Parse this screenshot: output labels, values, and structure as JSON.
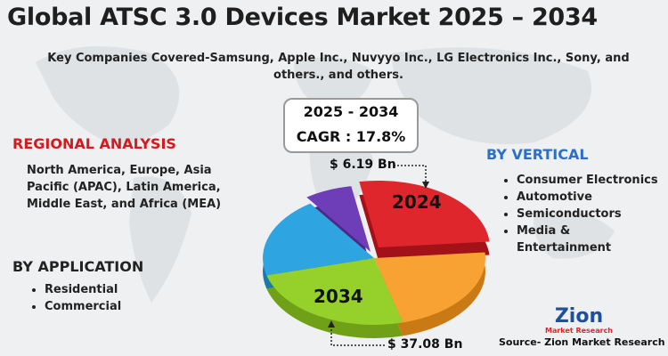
{
  "title": "Global ATSC 3.0 Devices Market 2025 – 2034",
  "subtitle": "Key Companies Covered-Samsung, Apple Inc., Nuvyyo Inc., LG Electronics Inc., Sony, and others., and others.",
  "forecast": {
    "period": "2025 - 2034",
    "cagr": "CAGR : 17.8%"
  },
  "regional": {
    "heading": "REGIONAL ANALYSIS",
    "text": "North America, Europe, Asia Pacific (APAC), Latin America, Middle East, and Africa (MEA)"
  },
  "application": {
    "heading": "BY APPLICATION",
    "items": [
      "Residential",
      "Commercial"
    ]
  },
  "vertical": {
    "heading": "BY VERTICAL",
    "items": [
      "Consumer Electronics",
      "Automotive",
      "Semiconductors",
      "Media & Entertainment"
    ]
  },
  "pie_labels": {
    "start_year": "2024",
    "start_value": "$ 6.19 Bn",
    "end_year": "2034",
    "end_value": "$ 37.08 Bn"
  },
  "logo": {
    "name": "Zion",
    "tagline": "Market Research"
  },
  "source": "Source- Zion Market Research"
}
